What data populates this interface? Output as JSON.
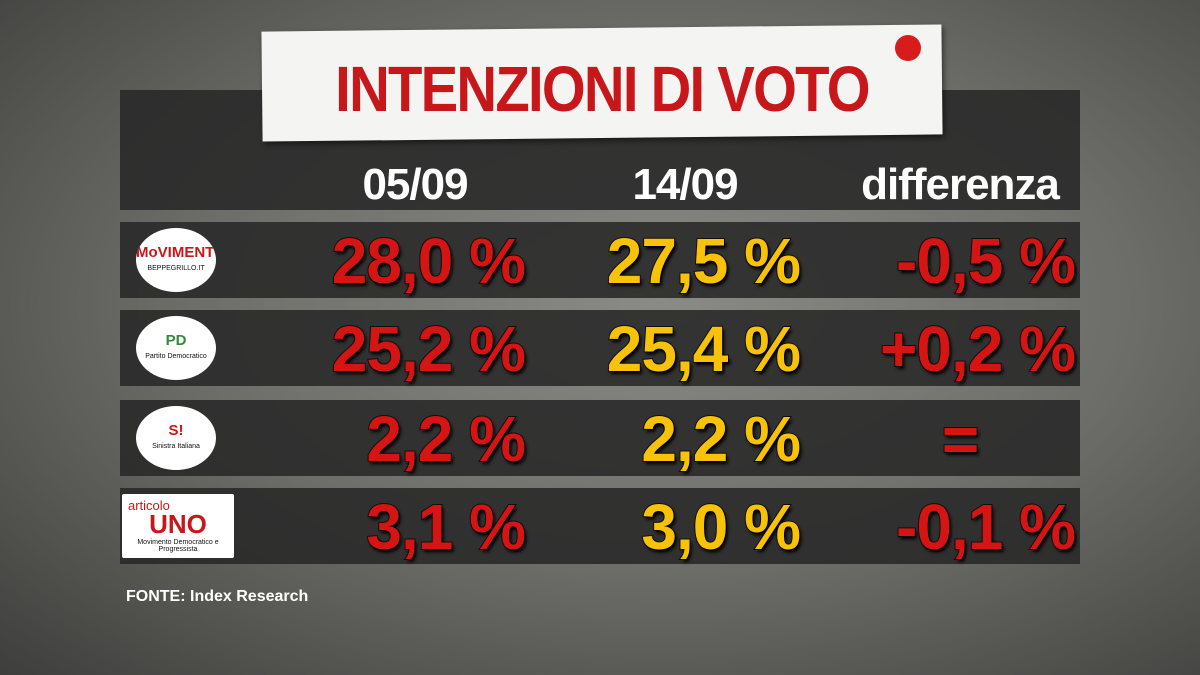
{
  "header": {
    "title": "INTENZIONI DI VOTO"
  },
  "table": {
    "columns": [
      "05/09",
      "14/09",
      "differenza"
    ],
    "rows": [
      {
        "logo": {
          "main": "MoVIMENTO",
          "sub": "BEPPEGRILLO.IT"
        },
        "cells": [
          "28,0 %",
          "27,5 %",
          "-0,5 %"
        ]
      },
      {
        "logo": {
          "main": "PD",
          "sub": "Partito Democratico"
        },
        "cells": [
          "25,2 %",
          "25,4 %",
          "+0,2 %"
        ]
      },
      {
        "logo": {
          "main": "S!",
          "sub": "Sinistra Italiana"
        },
        "cells": [
          "2,2 %",
          "2,2 %",
          "="
        ]
      },
      {
        "logo": {
          "top": "articolo",
          "main": "UNO",
          "sub": "Movimento Democratico e Progressista"
        },
        "cells": [
          "3,1 %",
          "3,0 %",
          "-0,1 %"
        ]
      }
    ]
  },
  "source": {
    "label": "FONTE:",
    "text": "Index Research"
  }
}
